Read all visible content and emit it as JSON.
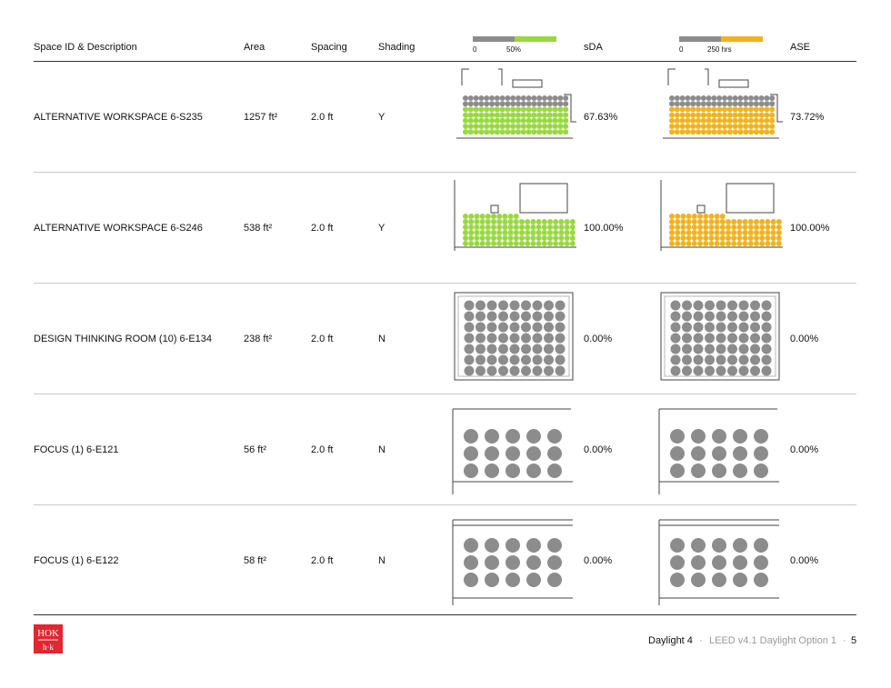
{
  "header": {
    "space_id": "Space ID & Description",
    "area": "Area",
    "spacing": "Spacing",
    "shading": "Shading",
    "sda": "sDA",
    "ase": "ASE",
    "sda_legend": {
      "min": "0",
      "mid": "50%",
      "low_color": "#8c8c8c",
      "high_color": "#97d93e"
    },
    "ase_legend": {
      "min": "0",
      "mid": "250 hrs",
      "low_color": "#8c8c8c",
      "high_color": "#f2b21e"
    }
  },
  "rows": [
    {
      "space": "ALTERNATIVE WORKSPACE 6-S235",
      "area": "1257 ft²",
      "spacing": "2.0 ft",
      "shading": "Y",
      "sda": "67.63%",
      "ase": "73.72%",
      "sda_fraction": 0.68,
      "ase_fraction": 0.74
    },
    {
      "space": "ALTERNATIVE WORKSPACE 6-S246",
      "area": "538 ft²",
      "spacing": "2.0 ft",
      "shading": "Y",
      "sda": "100.00%",
      "ase": "100.00%",
      "sda_fraction": 1.0,
      "ase_fraction": 1.0
    },
    {
      "space": "DESIGN THINKING ROOM (10) 6-E134",
      "area": "238 ft²",
      "spacing": "2.0 ft",
      "shading": "N",
      "sda": "0.00%",
      "ase": "0.00%",
      "sda_fraction": 0,
      "ase_fraction": 0
    },
    {
      "space": "FOCUS (1) 6-E121",
      "area": "56 ft²",
      "spacing": "2.0 ft",
      "shading": "N",
      "sda": "0.00%",
      "ase": "0.00%",
      "sda_fraction": 0,
      "ase_fraction": 0
    },
    {
      "space": "FOCUS (1) 6-E122",
      "area": "58 ft²",
      "spacing": "2.0 ft",
      "shading": "N",
      "sda": "0.00%",
      "ase": "0.00%",
      "sda_fraction": 0,
      "ase_fraction": 0
    }
  ],
  "colors": {
    "grey_point": "#8c8c8c",
    "sda_point": "#97d93e",
    "ase_point": "#f2b21e",
    "brand": "#e3262f"
  },
  "footer": {
    "section": "Daylight 4",
    "separator": "·",
    "subtitle": "LEED v4.1 Daylight Option 1",
    "page": "5",
    "logo_text": "HOK"
  }
}
